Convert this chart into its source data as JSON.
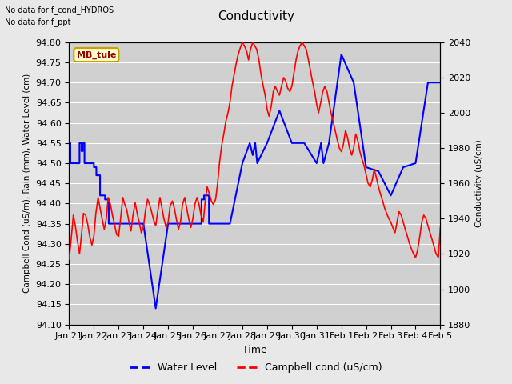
{
  "title": "Conductivity",
  "xlabel": "Time",
  "ylabel_left": "Campbell Cond (uS/m), Rain (mm), Water Level (cm)",
  "ylabel_right": "Conductivity (uS/cm)",
  "ann1": "No data for f_cond_HYDROS",
  "ann2": "No data for f_ppt",
  "box_label": "MB_tule",
  "ylim_left": [
    94.1,
    94.8
  ],
  "ylim_right": [
    1880,
    2040
  ],
  "fig_bg": "#e8e8e8",
  "plot_bg": "#d0d0d0",
  "grid_color": "#ffffff",
  "xtick_labels": [
    "Jan 21",
    "Jan 22",
    "Jan 23",
    "Jan 24",
    "Jan 25",
    "Jan 26",
    "Jan 27",
    "Jan 28",
    "Jan 29",
    "Jan 30",
    "Jan 31",
    "Feb 1",
    "Feb 2",
    "Feb 3",
    "Feb 4",
    "Feb 5"
  ],
  "legend_labels": [
    "Water Level",
    "Campbell cond (uS/cm)"
  ],
  "legend_colors": [
    "blue",
    "red"
  ],
  "wl_x": [
    0.0,
    0.05,
    0.05,
    0.42,
    0.42,
    0.5,
    0.5,
    0.55,
    0.55,
    0.62,
    0.62,
    1.0,
    1.0,
    1.1,
    1.1,
    1.25,
    1.25,
    1.45,
    1.45,
    1.6,
    1.6,
    2.0,
    2.0,
    2.15,
    2.15,
    2.3,
    2.3,
    3.0,
    3.0,
    3.5,
    3.5,
    4.0,
    4.0,
    4.5,
    4.5,
    5.35,
    5.35,
    5.45,
    5.45,
    5.55,
    5.55,
    5.65,
    5.65,
    6.0,
    6.0,
    6.5,
    6.5,
    7.0,
    7.0,
    7.3,
    7.3,
    7.42,
    7.42,
    7.52,
    7.52,
    7.6,
    7.6,
    8.0,
    8.0,
    8.5,
    8.5,
    9.0,
    9.0,
    9.5,
    9.5,
    10.0,
    10.0,
    10.08,
    10.08,
    10.18,
    10.18,
    10.28,
    10.28,
    10.5,
    10.5,
    11.0,
    11.0,
    11.5,
    11.5,
    12.0,
    12.0,
    12.5,
    12.5,
    13.0,
    13.0,
    13.5,
    13.5,
    14.0,
    14.0,
    14.5,
    14.5,
    15.0
  ],
  "wl_y": [
    94.55,
    94.55,
    94.5,
    94.5,
    94.55,
    94.55,
    94.53,
    94.53,
    94.55,
    94.55,
    94.5,
    94.5,
    94.49,
    94.49,
    94.47,
    94.47,
    94.42,
    94.42,
    94.41,
    94.41,
    94.35,
    94.35,
    94.35,
    94.35,
    94.35,
    94.35,
    94.35,
    94.35,
    94.35,
    94.14,
    94.14,
    94.35,
    94.35,
    94.35,
    94.35,
    94.35,
    94.41,
    94.41,
    94.42,
    94.42,
    94.42,
    94.42,
    94.35,
    94.35,
    94.35,
    94.35,
    94.35,
    94.5,
    94.5,
    94.55,
    94.55,
    94.52,
    94.52,
    94.55,
    94.55,
    94.5,
    94.5,
    94.55,
    94.55,
    94.63,
    94.63,
    94.55,
    94.55,
    94.55,
    94.55,
    94.5,
    94.5,
    94.52,
    94.52,
    94.55,
    94.55,
    94.5,
    94.5,
    94.55,
    94.55,
    94.77,
    94.77,
    94.7,
    94.7,
    94.49,
    94.49,
    94.48,
    94.48,
    94.42,
    94.42,
    94.49,
    94.49,
    94.5,
    94.5,
    94.7,
    94.7,
    94.7
  ],
  "camp_x": [
    0.0,
    0.08,
    0.17,
    0.25,
    0.33,
    0.42,
    0.5,
    0.58,
    0.67,
    0.75,
    0.83,
    0.92,
    1.0,
    1.08,
    1.17,
    1.25,
    1.33,
    1.42,
    1.5,
    1.58,
    1.67,
    1.75,
    1.83,
    1.92,
    2.0,
    2.08,
    2.17,
    2.25,
    2.33,
    2.42,
    2.5,
    2.58,
    2.67,
    2.75,
    2.83,
    2.92,
    3.0,
    3.08,
    3.17,
    3.25,
    3.33,
    3.42,
    3.5,
    3.58,
    3.67,
    3.75,
    3.83,
    3.92,
    4.0,
    4.08,
    4.17,
    4.25,
    4.33,
    4.42,
    4.5,
    4.58,
    4.67,
    4.75,
    4.83,
    4.92,
    5.0,
    5.08,
    5.17,
    5.25,
    5.33,
    5.42,
    5.5,
    5.58,
    5.67,
    5.75,
    5.83,
    5.92,
    6.0,
    6.08,
    6.17,
    6.25,
    6.33,
    6.42,
    6.5,
    6.58,
    6.67,
    6.75,
    6.83,
    6.92,
    7.0,
    7.08,
    7.17,
    7.25,
    7.33,
    7.42,
    7.5,
    7.58,
    7.67,
    7.75,
    7.83,
    7.92,
    8.0,
    8.08,
    8.17,
    8.25,
    8.33,
    8.42,
    8.5,
    8.58,
    8.67,
    8.75,
    8.83,
    8.92,
    9.0,
    9.08,
    9.17,
    9.25,
    9.33,
    9.42,
    9.5,
    9.58,
    9.67,
    9.75,
    9.83,
    9.92,
    10.0,
    10.08,
    10.17,
    10.25,
    10.33,
    10.42,
    10.5,
    10.58,
    10.67,
    10.75,
    10.83,
    10.92,
    11.0,
    11.08,
    11.17,
    11.25,
    11.33,
    11.42,
    11.5,
    11.58,
    11.67,
    11.75,
    11.83,
    11.92,
    12.0,
    12.08,
    12.17,
    12.25,
    12.33,
    12.42,
    12.5,
    12.58,
    12.67,
    12.75,
    12.83,
    12.92,
    13.0,
    13.08,
    13.17,
    13.25,
    13.33,
    13.42,
    13.5,
    13.58,
    13.67,
    13.75,
    13.83,
    13.92,
    14.0,
    14.08,
    14.17,
    14.25,
    14.33,
    14.42,
    14.5,
    14.58,
    14.67,
    14.75,
    14.83,
    14.92,
    15.0
  ],
  "camp_y": [
    1917,
    1928,
    1942,
    1936,
    1928,
    1920,
    1931,
    1943,
    1942,
    1937,
    1930,
    1925,
    1930,
    1943,
    1952,
    1946,
    1940,
    1934,
    1940,
    1952,
    1948,
    1942,
    1937,
    1931,
    1930,
    1940,
    1952,
    1948,
    1945,
    1938,
    1933,
    1942,
    1949,
    1943,
    1938,
    1932,
    1935,
    1944,
    1951,
    1948,
    1944,
    1939,
    1936,
    1944,
    1952,
    1946,
    1940,
    1935,
    1938,
    1947,
    1950,
    1946,
    1940,
    1934,
    1938,
    1948,
    1952,
    1946,
    1940,
    1935,
    1940,
    1948,
    1952,
    1948,
    1942,
    1938,
    1950,
    1958,
    1954,
    1950,
    1948,
    1951,
    1960,
    1972,
    1982,
    1988,
    1995,
    2000,
    2006,
    2015,
    2022,
    2028,
    2033,
    2037,
    2040,
    2038,
    2035,
    2030,
    2036,
    2040,
    2038,
    2036,
    2030,
    2022,
    2016,
    2010,
    2002,
    1998,
    2004,
    2012,
    2015,
    2012,
    2010,
    2015,
    2020,
    2018,
    2014,
    2012,
    2015,
    2022,
    2030,
    2035,
    2038,
    2040,
    2038,
    2036,
    2030,
    2024,
    2018,
    2012,
    2005,
    2000,
    2006,
    2012,
    2015,
    2012,
    2006,
    2000,
    1995,
    1990,
    1985,
    1980,
    1978,
    1982,
    1990,
    1986,
    1980,
    1976,
    1980,
    1988,
    1984,
    1978,
    1974,
    1970,
    1965,
    1960,
    1958,
    1962,
    1968,
    1963,
    1958,
    1954,
    1950,
    1946,
    1943,
    1940,
    1938,
    1935,
    1932,
    1938,
    1944,
    1942,
    1938,
    1934,
    1930,
    1926,
    1923,
    1920,
    1918,
    1922,
    1930,
    1938,
    1942,
    1940,
    1936,
    1932,
    1928,
    1924,
    1920,
    1918,
    1935
  ]
}
